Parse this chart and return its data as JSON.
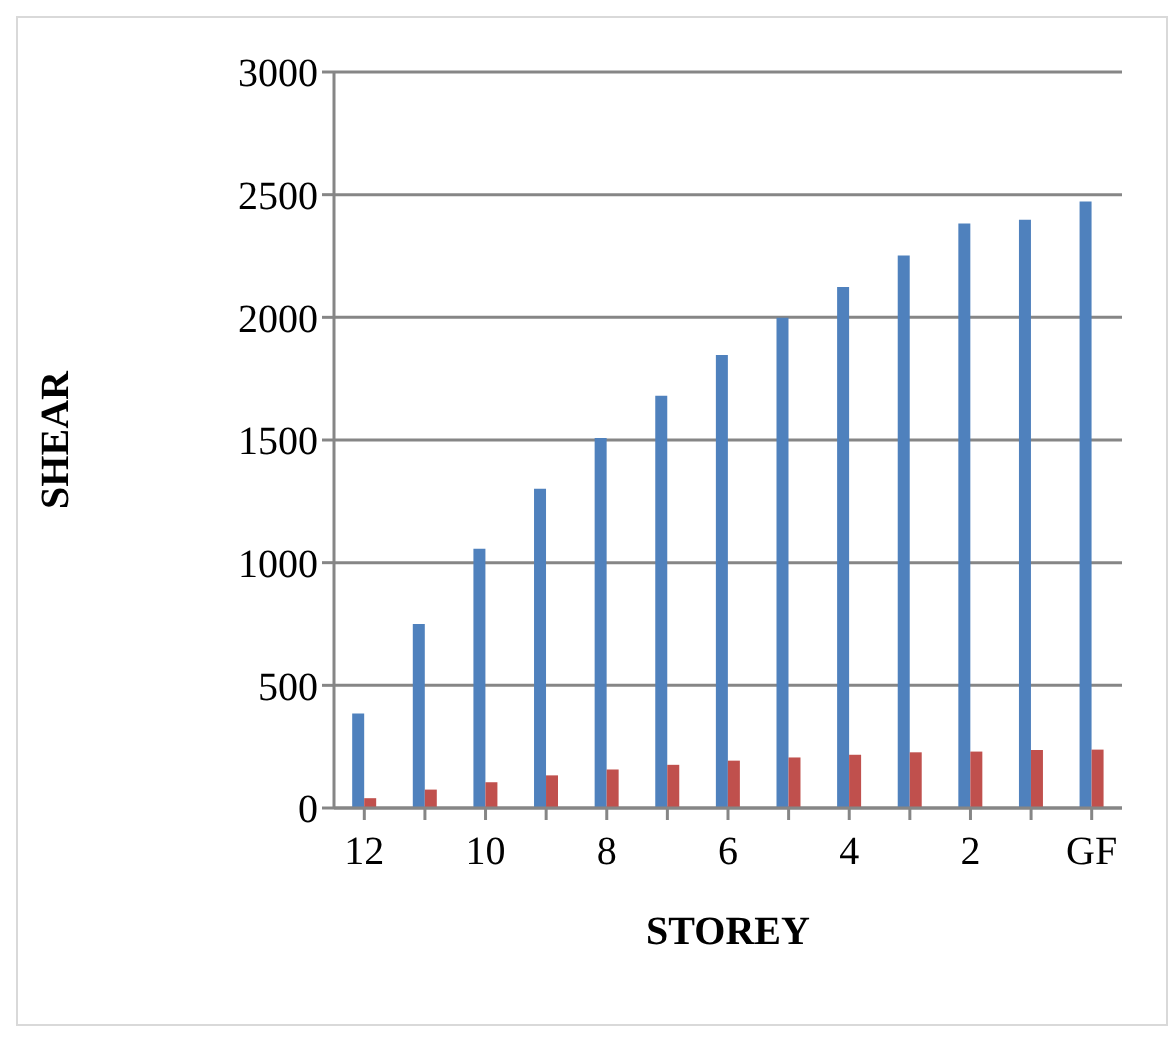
{
  "chart_data": {
    "type": "bar",
    "xlabel": "STOREY",
    "ylabel": "SHEAR",
    "categories": [
      "12",
      null,
      "10",
      null,
      "8",
      null,
      "6",
      null,
      "4",
      null,
      "2",
      null,
      "GF"
    ],
    "series": [
      {
        "color": "#4f81bd",
        "values": [
          385,
          750,
          1057,
          1301,
          1508,
          1680,
          1846,
          1998,
          2124,
          2252,
          2382,
          2398,
          2472
        ]
      },
      {
        "color": "#c0504d",
        "values": [
          40,
          75,
          105,
          133,
          157,
          176,
          193,
          206,
          217,
          227,
          230,
          236,
          238
        ]
      }
    ],
    "ylim": [
      0,
      3000
    ],
    "yticks": [
      0,
      500,
      1000,
      1500,
      2000,
      2500,
      3000
    ],
    "grid": "y",
    "legend": false
  }
}
